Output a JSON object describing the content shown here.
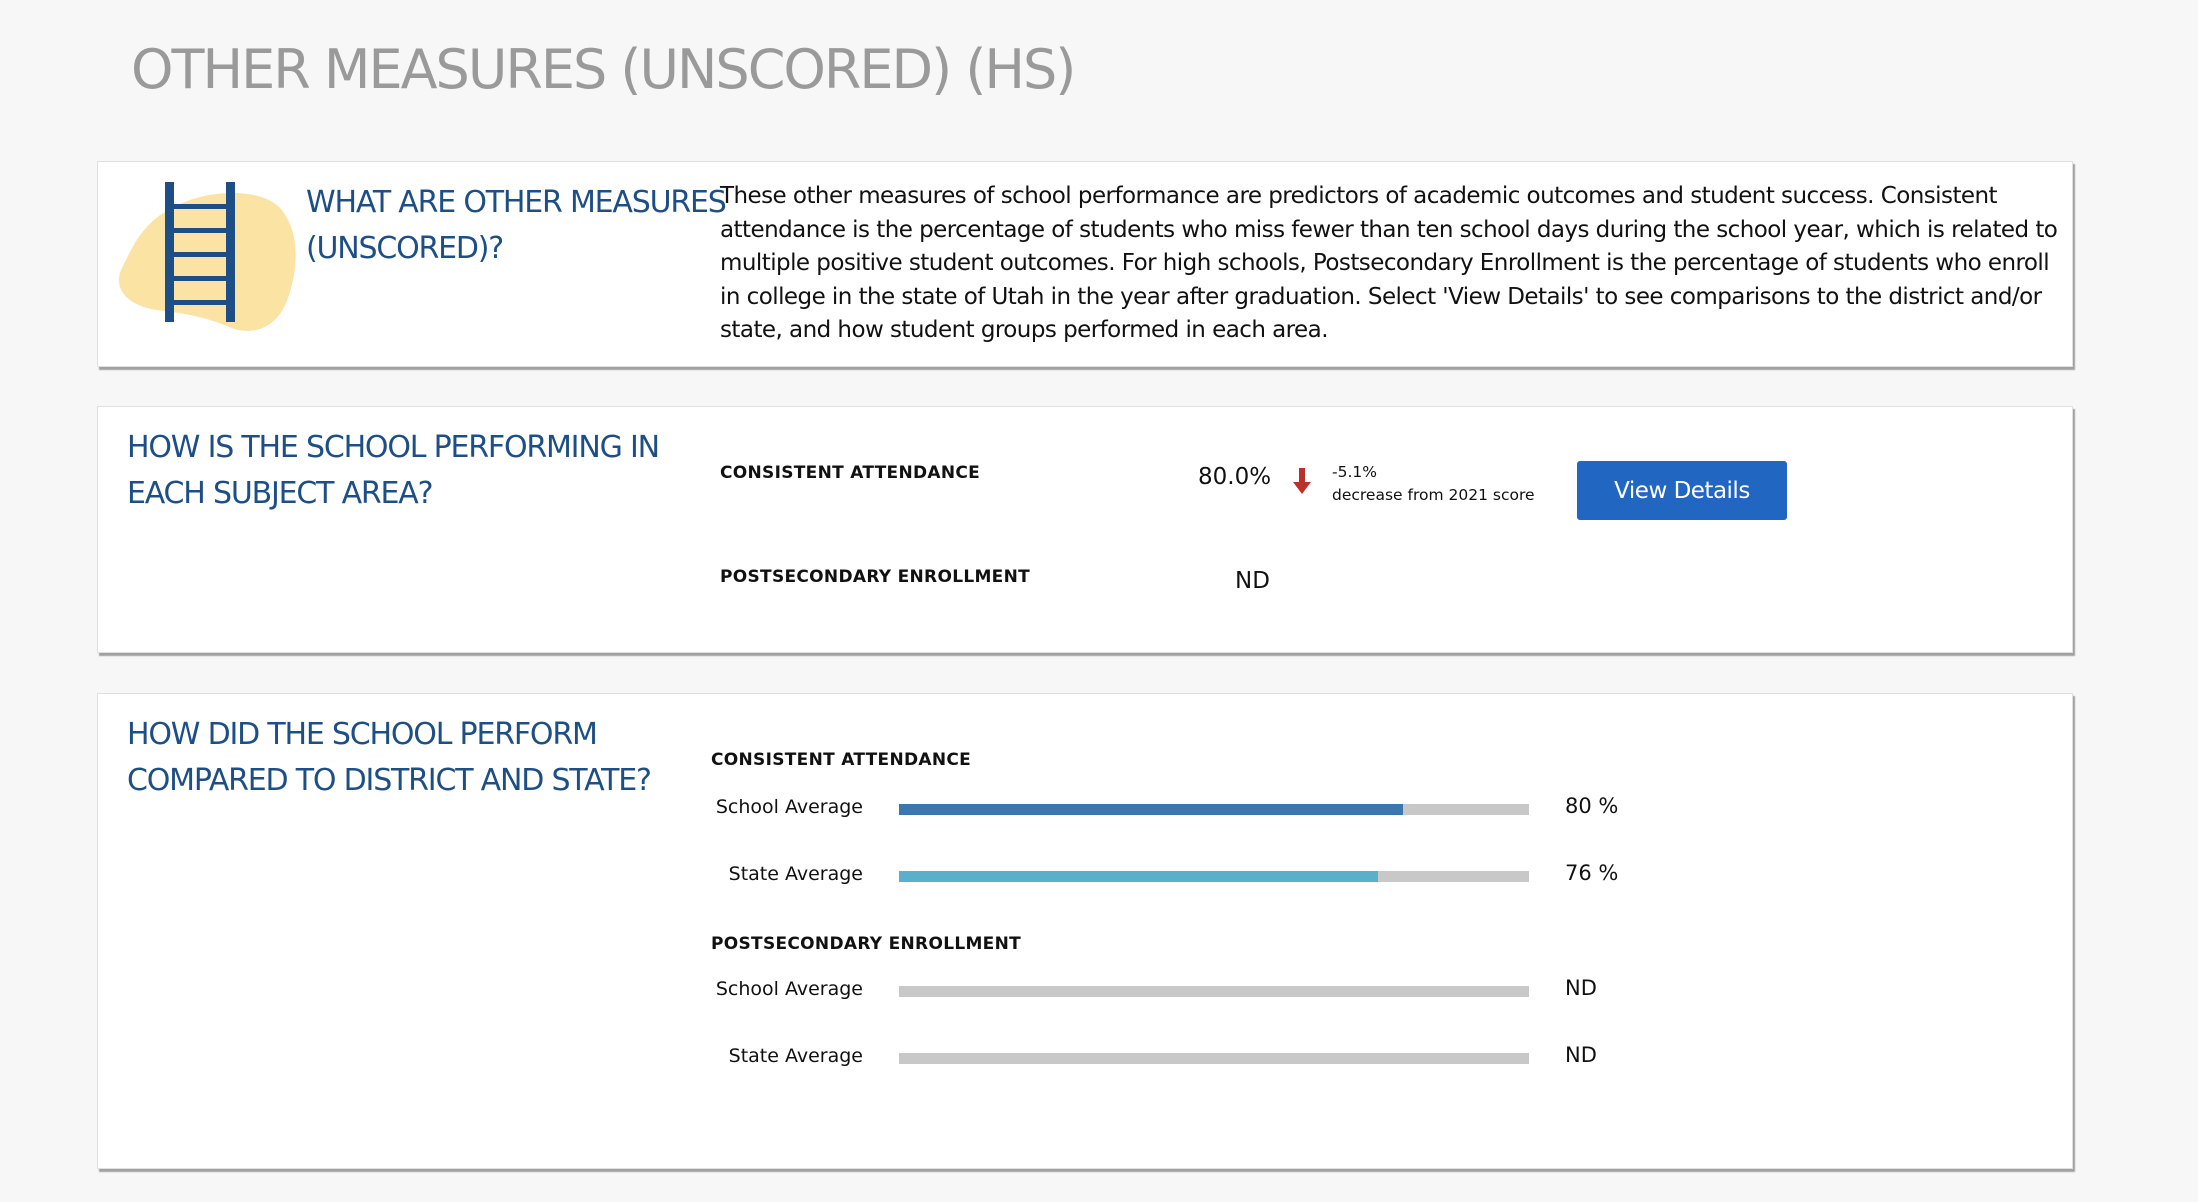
{
  "page": {
    "title": "OTHER MEASURES (UNSCORED) (HS)"
  },
  "colors": {
    "heading_blue": "#1d4f86",
    "school_bar": "#3a76b0",
    "state_bar": "#5aafca",
    "track": "#c8c8c8",
    "button": "#2166c0",
    "decrease_arrow": "#b8322a",
    "ladder_blob": "#fbe3a4",
    "ladder": "#1d4f86"
  },
  "intro": {
    "heading_line1": "WHAT ARE OTHER MEASURES",
    "heading_line2": "(UNSCORED)?",
    "icon": "ladder-icon",
    "text": "These other measures of school performance are predictors of academic outcomes and student success. Consistent attendance is the percentage of students who miss fewer than ten school days during the school year, which is related to multiple positive student outcomes. For high schools, Postsecondary Enrollment is the percentage of students who enroll in college in the state of Utah in the year after graduation. Select 'View Details' to see comparisons to the district and/or state, and how student groups performed in each area."
  },
  "performance": {
    "heading_line1": "HOW IS THE SCHOOL PERFORMING IN",
    "heading_line2": "EACH SUBJECT AREA?",
    "metrics": [
      {
        "label": "CONSISTENT ATTENDANCE",
        "value": "80.0%",
        "change_icon": "arrow-down-icon",
        "change": "-5.1%",
        "change_note": "decrease from 2021 score",
        "button_label": "View Details"
      },
      {
        "label": "POSTSECONDARY ENROLLMENT",
        "value": "ND"
      }
    ]
  },
  "comparison": {
    "heading_line1": "HOW DID THE SCHOOL PERFORM",
    "heading_line2": "COMPARED TO DISTRICT AND STATE?",
    "sections": [
      {
        "label": "CONSISTENT ATTENDANCE",
        "rows": [
          {
            "label": "School Average",
            "value": 80,
            "display": "80 %",
            "color": "#3a76b0"
          },
          {
            "label": "State Average",
            "value": 76,
            "display": "76 %",
            "color": "#5aafca"
          }
        ]
      },
      {
        "label": "POSTSECONDARY ENROLLMENT",
        "rows": [
          {
            "label": "School Average",
            "value": null,
            "display": "ND",
            "color": "#3a76b0"
          },
          {
            "label": "State Average",
            "value": null,
            "display": "ND",
            "color": "#5aafca"
          }
        ]
      }
    ]
  }
}
